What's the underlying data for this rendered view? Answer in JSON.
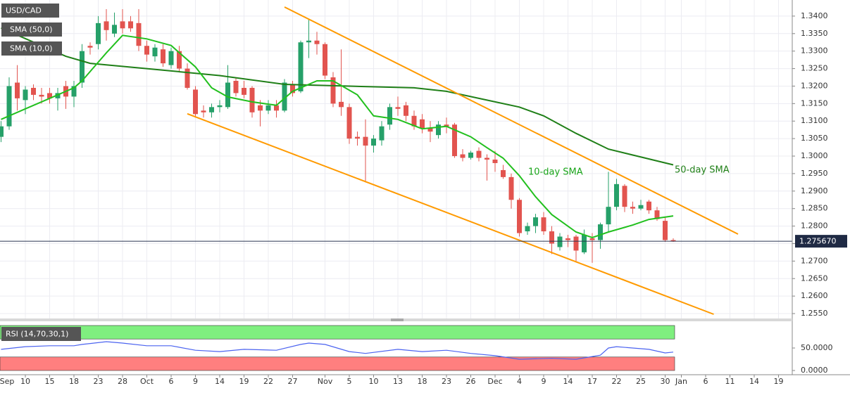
{
  "chart_data": [
    {
      "type": "candlestick",
      "title": "USD/CAD",
      "x": [
        "Sep 7",
        "Sep 8",
        "Sep 9",
        "Sep 10",
        "Sep 11",
        "Sep 14",
        "Sep 15",
        "Sep 16",
        "Sep 17",
        "Sep 18",
        "Sep 21",
        "Sep 22",
        "Sep 23",
        "Sep 24",
        "Sep 25",
        "Sep 28",
        "Sep 29",
        "Sep 30",
        "Oct 1",
        "Oct 2",
        "Oct 5",
        "Oct 6",
        "Oct 7",
        "Oct 8",
        "Oct 9",
        "Oct 12",
        "Oct 13",
        "Oct 14",
        "Oct 15",
        "Oct 16",
        "Oct 19",
        "Oct 20",
        "Oct 21",
        "Oct 22",
        "Oct 23",
        "Oct 26",
        "Oct 27",
        "Oct 28",
        "Oct 29",
        "Oct 30",
        "Nov 2",
        "Nov 3",
        "Nov 4",
        "Nov 5",
        "Nov 6",
        "Nov 9",
        "Nov 10",
        "Nov 11",
        "Nov 12",
        "Nov 13",
        "Nov 16",
        "Nov 17",
        "Nov 18",
        "Nov 19",
        "Nov 20",
        "Nov 23",
        "Nov 24",
        "Nov 25",
        "Nov 26",
        "Nov 27",
        "Nov 30",
        "Dec 1",
        "Dec 2",
        "Dec 3",
        "Dec 4",
        "Dec 7",
        "Dec 8",
        "Dec 9",
        "Dec 10",
        "Dec 11",
        "Dec 14",
        "Dec 15",
        "Dec 16",
        "Dec 17",
        "Dec 18",
        "Dec 21",
        "Dec 22",
        "Dec 23",
        "Dec 24",
        "Dec 25",
        "Dec 28",
        "Dec 29",
        "Dec 30",
        "Dec 31"
      ],
      "open": [
        1.3055,
        1.3085,
        1.321,
        1.316,
        1.3195,
        1.3175,
        1.318,
        1.3165,
        1.32,
        1.317,
        1.321,
        1.3315,
        1.332,
        1.3385,
        1.335,
        1.3385,
        1.3385,
        1.338,
        1.3315,
        1.3285,
        1.3305,
        1.326,
        1.33,
        1.325,
        1.319,
        1.313,
        1.3125,
        1.314,
        1.314,
        1.3215,
        1.3195,
        1.3195,
        1.3145,
        1.313,
        1.3145,
        1.313,
        1.3205,
        1.3185,
        1.3325,
        1.333,
        1.332,
        1.3225,
        1.3155,
        1.314,
        1.3055,
        1.3055,
        1.303,
        1.3045,
        1.309,
        1.314,
        1.3145,
        1.3115,
        1.3105,
        1.308,
        1.306,
        1.309,
        1.309,
        1.3005,
        1.2995,
        1.3015,
        1.2995,
        1.299,
        1.296,
        1.294,
        1.2875,
        1.2785,
        1.28,
        1.2825,
        1.2785,
        1.274,
        1.2765,
        1.277,
        1.2725,
        1.2765,
        1.276,
        1.2805,
        1.2855,
        1.2915,
        1.2855,
        1.285,
        1.287,
        1.2845,
        1.2815,
        1.276
      ],
      "high": [
        1.31,
        1.3225,
        1.326,
        1.32,
        1.3205,
        1.3195,
        1.3195,
        1.3195,
        1.3215,
        1.3215,
        1.332,
        1.3325,
        1.34,
        1.342,
        1.341,
        1.342,
        1.34,
        1.342,
        1.333,
        1.332,
        1.332,
        1.331,
        1.3315,
        1.3265,
        1.32,
        1.3145,
        1.315,
        1.316,
        1.326,
        1.3225,
        1.3215,
        1.32,
        1.316,
        1.316,
        1.316,
        1.322,
        1.3215,
        1.333,
        1.339,
        1.3355,
        1.3325,
        1.324,
        1.3305,
        1.315,
        1.307,
        1.3105,
        1.306,
        1.31,
        1.315,
        1.317,
        1.3155,
        1.313,
        1.312,
        1.31,
        1.31,
        1.311,
        1.3095,
        1.302,
        1.3015,
        1.3025,
        1.3005,
        1.3015,
        1.2975,
        1.295,
        1.288,
        1.281,
        1.2835,
        1.284,
        1.28,
        1.278,
        1.2775,
        1.2775,
        1.279,
        1.278,
        1.281,
        1.2955,
        1.2935,
        1.292,
        1.287,
        1.2875,
        1.2875,
        1.2855,
        1.2825,
        1.2765
      ],
      "low": [
        1.304,
        1.3075,
        1.313,
        1.312,
        1.316,
        1.315,
        1.315,
        1.313,
        1.3135,
        1.314,
        1.3195,
        1.329,
        1.3305,
        1.333,
        1.334,
        1.335,
        1.3355,
        1.33,
        1.327,
        1.327,
        1.3255,
        1.325,
        1.324,
        1.319,
        1.311,
        1.311,
        1.311,
        1.3125,
        1.3135,
        1.317,
        1.3165,
        1.311,
        1.3085,
        1.312,
        1.311,
        1.3125,
        1.317,
        1.318,
        1.328,
        1.329,
        1.322,
        1.314,
        1.3115,
        1.3035,
        1.303,
        1.2925,
        1.301,
        1.303,
        1.3075,
        1.3115,
        1.31,
        1.3075,
        1.3065,
        1.304,
        1.305,
        1.3065,
        1.2995,
        1.2985,
        1.299,
        1.2985,
        1.293,
        1.2955,
        1.2935,
        1.285,
        1.277,
        1.2775,
        1.278,
        1.2775,
        1.272,
        1.273,
        1.274,
        1.27,
        1.272,
        1.2695,
        1.2735,
        1.2785,
        1.2845,
        1.284,
        1.2835,
        1.2845,
        1.2835,
        1.2815,
        1.2755,
        1.2755
      ],
      "close": [
        1.3085,
        1.32,
        1.3165,
        1.319,
        1.3175,
        1.317,
        1.3165,
        1.318,
        1.317,
        1.32,
        1.33,
        1.331,
        1.338,
        1.336,
        1.3375,
        1.3365,
        1.3365,
        1.3315,
        1.329,
        1.331,
        1.3265,
        1.33,
        1.325,
        1.3195,
        1.312,
        1.3125,
        1.314,
        1.3145,
        1.321,
        1.318,
        1.3175,
        1.3125,
        1.313,
        1.3145,
        1.313,
        1.321,
        1.318,
        1.3325,
        1.333,
        1.332,
        1.323,
        1.315,
        1.314,
        1.305,
        1.305,
        1.303,
        1.305,
        1.3085,
        1.314,
        1.3135,
        1.3115,
        1.3085,
        1.308,
        1.307,
        1.309,
        1.3085,
        1.3,
        1.2995,
        1.301,
        1.2995,
        1.299,
        1.298,
        1.294,
        1.2875,
        1.278,
        1.28,
        1.2825,
        1.2785,
        1.275,
        1.277,
        1.276,
        1.273,
        1.2775,
        1.276,
        1.2805,
        1.2855,
        1.292,
        1.2855,
        1.285,
        1.286,
        1.2845,
        1.282,
        1.276,
        1.27567
      ],
      "up_color": "#26a069",
      "down_color": "#e2544f",
      "series": [
        {
          "name": "SMA (50,0)",
          "color": "#1f7f17",
          "x": [
            "Sep 7",
            "Sep 17",
            "Sep 22",
            "Oct 1",
            "Oct 14",
            "Oct 26",
            "Nov 5",
            "Nov 17",
            "Nov 23",
            "Nov 30",
            "Dec 4",
            "Dec 9",
            "Dec 15",
            "Dec 21",
            "Dec 31"
          ],
          "values": [
            1.3366,
            1.3285,
            1.3265,
            1.325,
            1.323,
            1.3205,
            1.32,
            1.3195,
            1.3185,
            1.316,
            1.314,
            1.3115,
            1.3065,
            1.302,
            1.2975
          ]
        },
        {
          "name": "SMA (10,0)",
          "color": "#22c01e",
          "x": [
            "Sep 7",
            "Sep 10",
            "Sep 15",
            "Sep 18",
            "Sep 21",
            "Sep 24",
            "Sep 28",
            "Oct 1",
            "Oct 6",
            "Oct 9",
            "Oct 13",
            "Oct 15",
            "Oct 20",
            "Oct 23",
            "Oct 27",
            "Oct 30",
            "Nov 3",
            "Nov 6",
            "Nov 10",
            "Nov 13",
            "Nov 18",
            "Nov 23",
            "Nov 26",
            "Nov 30",
            "Dec 2",
            "Dec 4",
            "Dec 8",
            "Dec 10",
            "Dec 15",
            "Dec 17",
            "Dec 21",
            "Dec 24",
            "Dec 28",
            "Dec 31"
          ],
          "values": [
            1.3105,
            1.3135,
            1.3165,
            1.3195,
            1.3215,
            1.3295,
            1.3345,
            1.3335,
            1.3316,
            1.3255,
            1.3195,
            1.3169,
            1.3155,
            1.3145,
            1.3185,
            1.3215,
            1.3215,
            1.3175,
            1.3115,
            1.3105,
            1.3078,
            1.3085,
            1.3055,
            1.3024,
            1.2994,
            1.2944,
            1.2884,
            1.2833,
            1.2783,
            1.2767,
            1.2783,
            1.2803,
            1.2819,
            1.2829
          ]
        }
      ],
      "trendlines": [
        {
          "color": "#ff9a00",
          "x": [
            "Oct 26",
            "Jan 12"
          ],
          "values": [
            1.3426,
            1.2777
          ]
        },
        {
          "color": "#ff9a00",
          "x": [
            "Oct 8",
            "Jan 7"
          ],
          "values": [
            1.3121,
            1.2548
          ]
        }
      ],
      "annotations": [
        "10-day SMA",
        "50-day SMA"
      ],
      "last_price": {
        "value": 1.27567,
        "label": "1.275670"
      },
      "ylim": [
        1.2536,
        1.3446
      ],
      "yticks": [
        {
          "value": 1.34,
          "label": "1.3400"
        },
        {
          "value": 1.335,
          "label": "1.3350"
        },
        {
          "value": 1.33,
          "label": "1.3300"
        },
        {
          "value": 1.325,
          "label": "1.3250"
        },
        {
          "value": 1.32,
          "label": "1.3200"
        },
        {
          "value": 1.315,
          "label": "1.3150"
        },
        {
          "value": 1.31,
          "label": "1.3100"
        },
        {
          "value": 1.305,
          "label": "1.3050"
        },
        {
          "value": 1.3,
          "label": "1.3000"
        },
        {
          "value": 1.295,
          "label": "1.2950"
        },
        {
          "value": 1.29,
          "label": "1.2900"
        },
        {
          "value": 1.285,
          "label": "1.2850"
        },
        {
          "value": 1.28,
          "label": "1.2800"
        },
        {
          "value": 1.275,
          "label": "1.2750"
        },
        {
          "value": 1.27,
          "label": "1.2700"
        },
        {
          "value": 1.265,
          "label": "1.2650"
        },
        {
          "value": 1.26,
          "label": "1.2600"
        },
        {
          "value": 1.255,
          "label": "1.2550"
        }
      ],
      "xticks": [
        {
          "value": "Sep 1",
          "label": "Sep"
        },
        {
          "value": "Sep 10",
          "label": "10"
        },
        {
          "value": "Sep 15",
          "label": "15"
        },
        {
          "value": "Sep 18",
          "label": "18"
        },
        {
          "value": "Sep 23",
          "label": "23"
        },
        {
          "value": "Sep 28",
          "label": "28"
        },
        {
          "value": "Oct 1",
          "label": "Oct"
        },
        {
          "value": "Oct 6",
          "label": "6"
        },
        {
          "value": "Oct 9",
          "label": "9"
        },
        {
          "value": "Oct 14",
          "label": "14"
        },
        {
          "value": "Oct 19",
          "label": "19"
        },
        {
          "value": "Oct 22",
          "label": "22"
        },
        {
          "value": "Oct 27",
          "label": "27"
        },
        {
          "value": "Nov 2",
          "label": "Nov"
        },
        {
          "value": "Nov 5",
          "label": "5"
        },
        {
          "value": "Nov 10",
          "label": "10"
        },
        {
          "value": "Nov 13",
          "label": "13"
        },
        {
          "value": "Nov 18",
          "label": "18"
        },
        {
          "value": "Nov 23",
          "label": "23"
        },
        {
          "value": "Nov 26",
          "label": "26"
        },
        {
          "value": "Dec 1",
          "label": "Dec"
        },
        {
          "value": "Dec 4",
          "label": "4"
        },
        {
          "value": "Dec 9",
          "label": "9"
        },
        {
          "value": "Dec 14",
          "label": "14"
        },
        {
          "value": "Dec 17",
          "label": "17"
        },
        {
          "value": "Dec 22",
          "label": "22"
        },
        {
          "value": "Dec 25",
          "label": "25"
        },
        {
          "value": "Dec 30",
          "label": "30"
        },
        {
          "value": "Jan 1",
          "label": "Jan"
        },
        {
          "value": "Jan 6",
          "label": "6"
        },
        {
          "value": "Jan 11",
          "label": "11"
        },
        {
          "value": "Jan 14",
          "label": "14"
        },
        {
          "value": "Jan 19",
          "label": "19"
        }
      ],
      "grid": true
    },
    {
      "type": "line",
      "title": "RSI (14,70,30,1)",
      "bands": [
        {
          "from": 70,
          "to": 100,
          "color": "#7fef7f"
        },
        {
          "from": 0,
          "to": 30,
          "color": "#ff7f7f"
        }
      ],
      "series": [
        {
          "color": "#4b63f0",
          "x": [
            "Sep 7",
            "Sep 10",
            "Sep 15",
            "Sep 18",
            "Sep 21",
            "Sep 24",
            "Sep 28",
            "Oct 1",
            "Oct 6",
            "Oct 9",
            "Oct 14",
            "Oct 19",
            "Oct 23",
            "Oct 28",
            "Oct 29",
            "Nov 2",
            "Nov 5",
            "Nov 9",
            "Nov 13",
            "Nov 18",
            "Nov 23",
            "Nov 26",
            "Dec 1",
            "Dec 4",
            "Dec 10",
            "Dec 15",
            "Dec 18",
            "Dec 21",
            "Dec 22",
            "Dec 28",
            "Dec 30",
            "Dec 31"
          ],
          "values": [
            47,
            53,
            55,
            55,
            58,
            64,
            61,
            55,
            55,
            45,
            42,
            47,
            45,
            58,
            61,
            58,
            42,
            38,
            47,
            42,
            45,
            38,
            33,
            25,
            27,
            25,
            34,
            50,
            53,
            47,
            39,
            41
          ]
        }
      ],
      "ylim": [
        0,
        100
      ],
      "yticks": [
        {
          "value": 50,
          "label": "50.0000"
        },
        {
          "value": 0,
          "label": "0.0000"
        }
      ]
    }
  ]
}
